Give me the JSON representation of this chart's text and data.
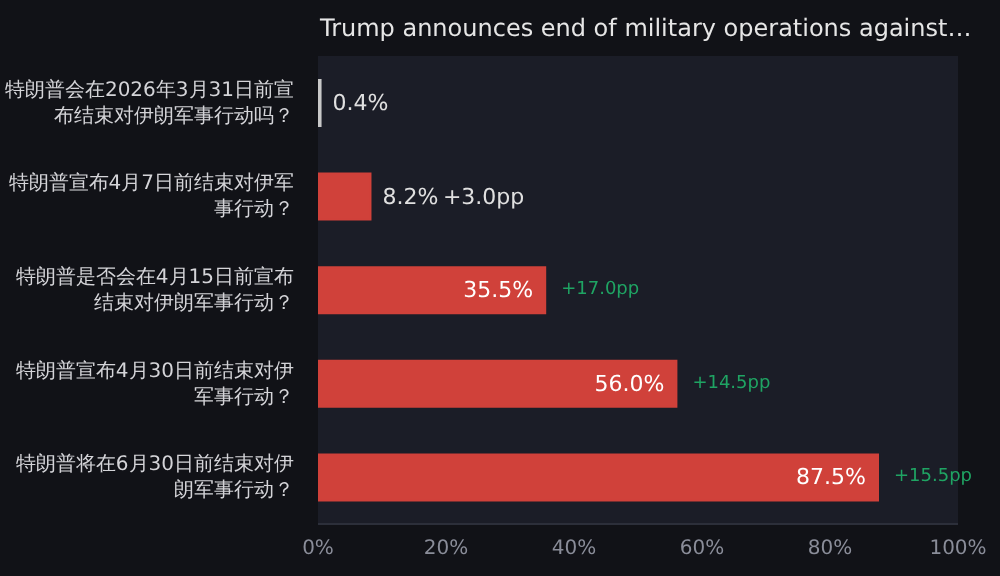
{
  "chart_data": {
    "type": "bar",
    "orientation": "horizontal",
    "title": "Trump announces end of military operations against…",
    "categories": [
      "特朗普会在2026年3月31日前宣布结束对伊朗军事行动吗？",
      "特朗普宣布4月7日前结束对伊军事行动？",
      "特朗普是否会在4月15日前宣布结束对伊朗军事行动？",
      "特朗普宣布4月30日前结束对伊军事行动？",
      "特朗普将在6月30日前结束对伊朗军事行动？"
    ],
    "values": [
      0.4,
      8.2,
      35.5,
      56.0,
      87.5
    ],
    "colors": [
      "#c8c8c8",
      "#d0413a",
      "#d0413a",
      "#d0413a",
      "#d0413a"
    ],
    "value_labels": [
      "0.4%",
      "8.2%",
      "35.5%",
      "56.0%",
      "87.5%"
    ],
    "annotations": [
      "+3.0pp",
      "+17.0pp",
      "+14.5pp",
      "+15.5pp"
    ],
    "xlim": [
      0,
      100
    ],
    "xticks": [
      {
        "value": 0,
        "label": "0%"
      },
      {
        "value": 20,
        "label": "20%"
      },
      {
        "value": 40,
        "label": "40%"
      },
      {
        "value": 60,
        "label": "60%"
      },
      {
        "value": 80,
        "label": "80%"
      },
      {
        "value": 100,
        "label": "100%"
      }
    ],
    "grid": false
  }
}
